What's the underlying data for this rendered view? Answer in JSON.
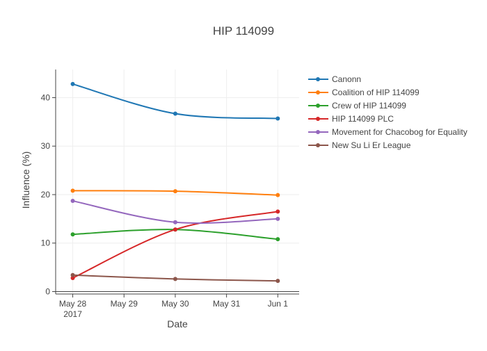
{
  "chart_data": {
    "type": "line",
    "title": "HIP 114099",
    "xlabel": "Date",
    "ylabel": "Influence (%)",
    "x_dates": [
      "2017-05-28",
      "2017-05-30",
      "2017-06-01"
    ],
    "xticks": [
      {
        "date": "2017-05-28",
        "label": "May 28",
        "sublabel": "2017"
      },
      {
        "date": "2017-05-29",
        "label": "May 29",
        "sublabel": ""
      },
      {
        "date": "2017-05-30",
        "label": "May 30",
        "sublabel": ""
      },
      {
        "date": "2017-05-31",
        "label": "May 31",
        "sublabel": ""
      },
      {
        "date": "2017-06-01",
        "label": "Jun 1",
        "sublabel": ""
      }
    ],
    "xlim": [
      "2017-05-27 16:00",
      "2017-06-01 10:00"
    ],
    "ylim": [
      -0.5,
      45.8
    ],
    "yticks": [
      0,
      10,
      20,
      30,
      40
    ],
    "grid": true,
    "legend_position": "right",
    "series": [
      {
        "name": "Canonn",
        "color": "#1f77b4",
        "values": [
          42.8,
          36.7,
          35.7
        ]
      },
      {
        "name": "Coalition of HIP 114099",
        "color": "#ff7f0e",
        "values": [
          20.8,
          20.7,
          19.9
        ]
      },
      {
        "name": "Crew of HIP 114099",
        "color": "#2ca02c",
        "values": [
          11.8,
          12.8,
          10.8
        ]
      },
      {
        "name": "HIP 114099 PLC",
        "color": "#d62728",
        "values": [
          2.8,
          12.8,
          16.5
        ]
      },
      {
        "name": "Movement for Chacobog for Equality",
        "color": "#9467bd",
        "values": [
          18.7,
          14.3,
          15.0
        ]
      },
      {
        "name": "New Su Li Er League",
        "color": "#8c564b",
        "values": [
          3.4,
          2.6,
          2.2
        ]
      }
    ]
  }
}
